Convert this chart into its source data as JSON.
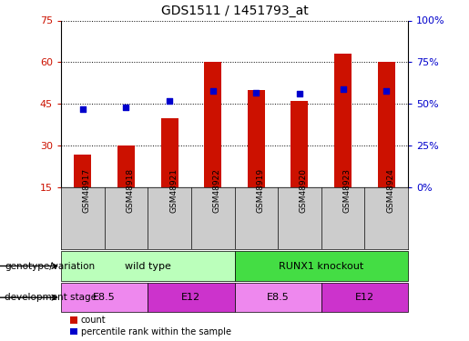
{
  "title": "GDS1511 / 1451793_at",
  "samples": [
    "GSM48917",
    "GSM48918",
    "GSM48921",
    "GSM48922",
    "GSM48919",
    "GSM48920",
    "GSM48923",
    "GSM48924"
  ],
  "bar_values": [
    27,
    30,
    40,
    60,
    50,
    46,
    63,
    60
  ],
  "percentile_values": [
    47,
    48,
    52,
    58,
    57,
    56,
    59,
    58
  ],
  "ylim_left": [
    15,
    75
  ],
  "ylim_right": [
    0,
    100
  ],
  "bar_color": "#cc1100",
  "dot_color": "#0000cc",
  "yticks_left": [
    15,
    30,
    45,
    60,
    75
  ],
  "yticks_right": [
    0,
    25,
    50,
    75,
    100
  ],
  "ytick_labels_right": [
    "0%",
    "25%",
    "50%",
    "75%",
    "100%"
  ],
  "genotype_groups": [
    {
      "label": "wild type",
      "start": 0,
      "end": 4,
      "color": "#bbffbb"
    },
    {
      "label": "RUNX1 knockout",
      "start": 4,
      "end": 8,
      "color": "#44dd44"
    }
  ],
  "stage_groups": [
    {
      "label": "E8.5",
      "start": 0,
      "end": 2,
      "color": "#ee88ee"
    },
    {
      "label": "E12",
      "start": 2,
      "end": 4,
      "color": "#cc33cc"
    },
    {
      "label": "E8.5",
      "start": 4,
      "end": 6,
      "color": "#ee88ee"
    },
    {
      "label": "E12",
      "start": 6,
      "end": 8,
      "color": "#cc33cc"
    }
  ],
  "genotype_label": "genotype/variation",
  "stage_label": "development stage",
  "legend_count": "count",
  "legend_percentile": "percentile rank within the sample",
  "bar_width": 0.4,
  "sample_bg_color": "#cccccc",
  "tick_color_left": "#cc1100",
  "tick_color_right": "#0000cc"
}
